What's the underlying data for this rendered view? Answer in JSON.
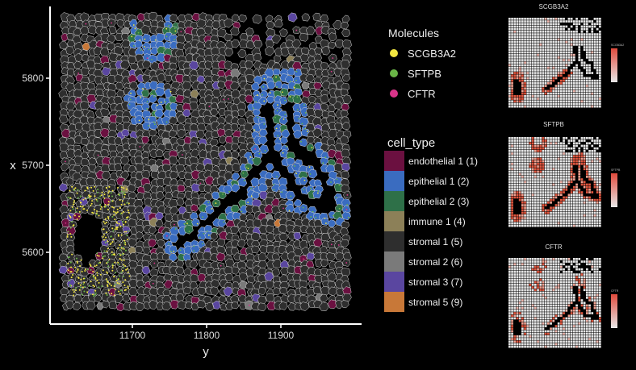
{
  "chart_data": {
    "type": "scatter",
    "title": "",
    "xlabel": "y",
    "ylabel": "x",
    "xlim": [
      11640,
      11960
    ],
    "ylim": [
      5530,
      5870
    ],
    "xticks": [
      "11700",
      "11800",
      "11900"
    ],
    "yticks": [
      "5800",
      "5700",
      "5600"
    ],
    "background": "#000000",
    "grid": false,
    "molecules_legend": {
      "title": "Molecules",
      "items": [
        {
          "label": "SCGB3A2",
          "color": "#f2e641"
        },
        {
          "label": "SFTPB",
          "color": "#6ab547"
        },
        {
          "label": "CFTR",
          "color": "#d9348a"
        }
      ]
    },
    "cell_type_legend": {
      "title": "cell_type",
      "items": [
        {
          "label": "endothelial 1 (1)",
          "color": "#6b1040"
        },
        {
          "label": "epithelial 1 (2)",
          "color": "#3a6cc0"
        },
        {
          "label": "epithelial 2 (3)",
          "color": "#2e7048"
        },
        {
          "label": "immune 1 (4)",
          "color": "#8c8058"
        },
        {
          "label": "stromal 1 (5)",
          "color": "#2e2e2e"
        },
        {
          "label": "stromal 2 (6)",
          "color": "#7a7a7a"
        },
        {
          "label": "stromal 3 (7)",
          "color": "#5a46a0"
        },
        {
          "label": "stromal 5 (9)",
          "color": "#c87838"
        }
      ]
    },
    "expression_panels": [
      {
        "title": "SCGB3A2",
        "colorbar_title": "SCGB3A2",
        "low_color": "#e8e8e8",
        "high_color": "#e04a3c"
      },
      {
        "title": "SFTPB",
        "colorbar_title": "SFTPB",
        "low_color": "#e8e8e8",
        "high_color": "#e04a3c"
      },
      {
        "title": "CFTR",
        "colorbar_title": "CFTR",
        "low_color": "#e8e8e8",
        "high_color": "#e04a3c"
      }
    ]
  }
}
